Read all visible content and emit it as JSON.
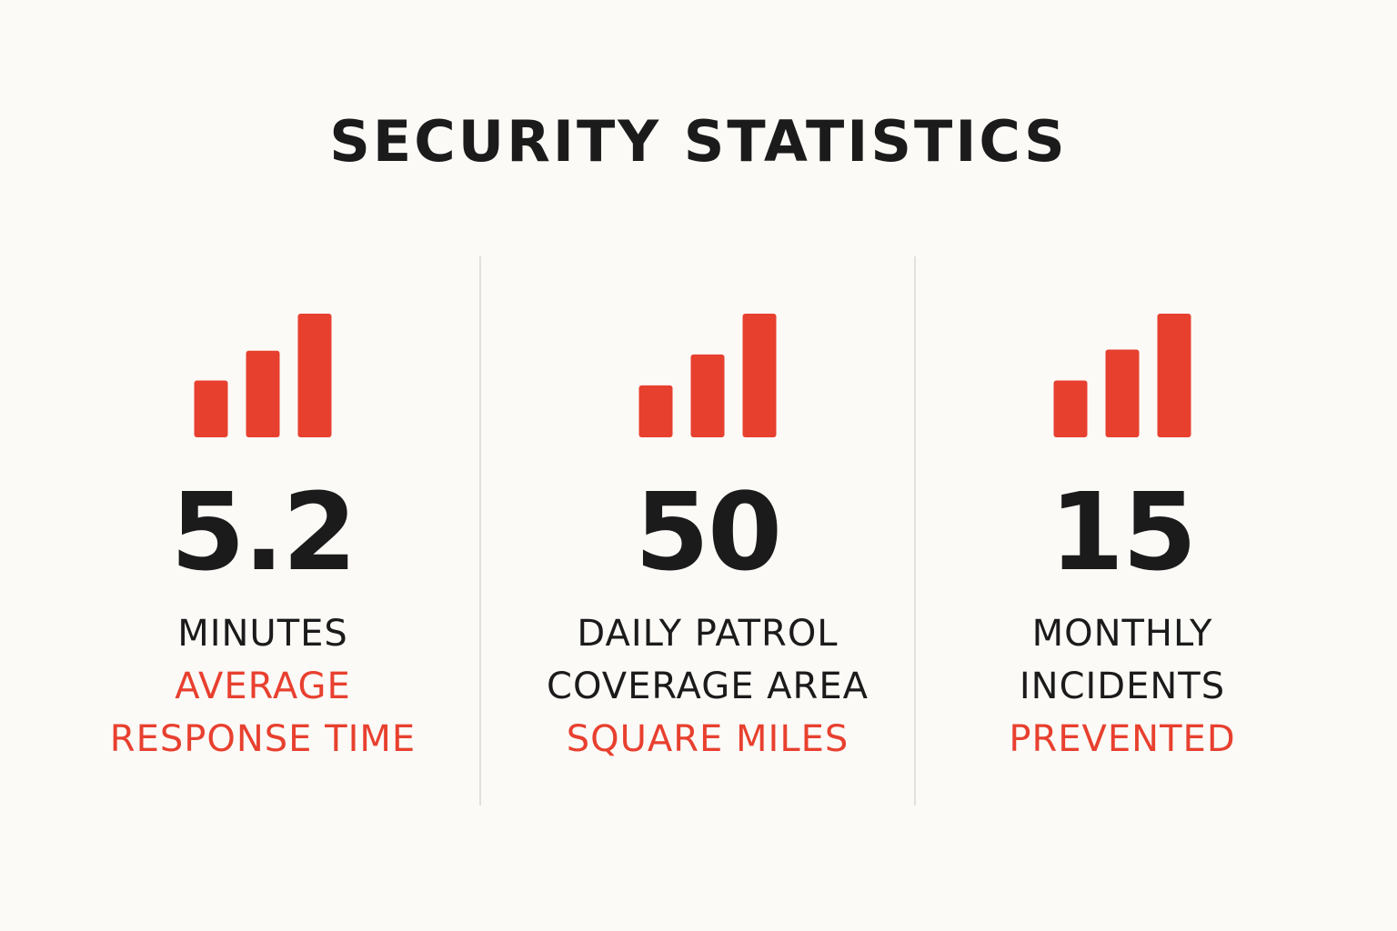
{
  "title": "SECURITY STATISTICS",
  "colors": {
    "accent": "#e8402f",
    "text": "#1b1b1b",
    "background": "#fbfaf7",
    "divider": "#e2e0dc"
  },
  "stats": [
    {
      "icon": "bar-chart-icon",
      "icon_bar_levels": [
        0.46,
        0.7,
        1.0
      ],
      "value": "5.2",
      "lines": [
        {
          "text": "MINUTES",
          "tone": "dark"
        },
        {
          "text": "AVERAGE",
          "tone": "red"
        },
        {
          "text": "RESPONSE TIME",
          "tone": "red"
        }
      ]
    },
    {
      "icon": "bar-chart-icon",
      "icon_bar_levels": [
        0.42,
        0.67,
        1.0
      ],
      "value": "50",
      "lines": [
        {
          "text": "DAILY PATROL",
          "tone": "dark"
        },
        {
          "text": "COVERAGE AREA",
          "tone": "dark"
        },
        {
          "text": "SQUARE MILES",
          "tone": "red"
        }
      ]
    },
    {
      "icon": "bar-chart-icon",
      "icon_bar_levels": [
        0.46,
        0.71,
        1.0
      ],
      "value": "15",
      "lines": [
        {
          "text": "MONTHLY",
          "tone": "dark"
        },
        {
          "text": "INCIDENTS",
          "tone": "dark"
        },
        {
          "text": "PREVENTED",
          "tone": "red"
        }
      ]
    }
  ]
}
